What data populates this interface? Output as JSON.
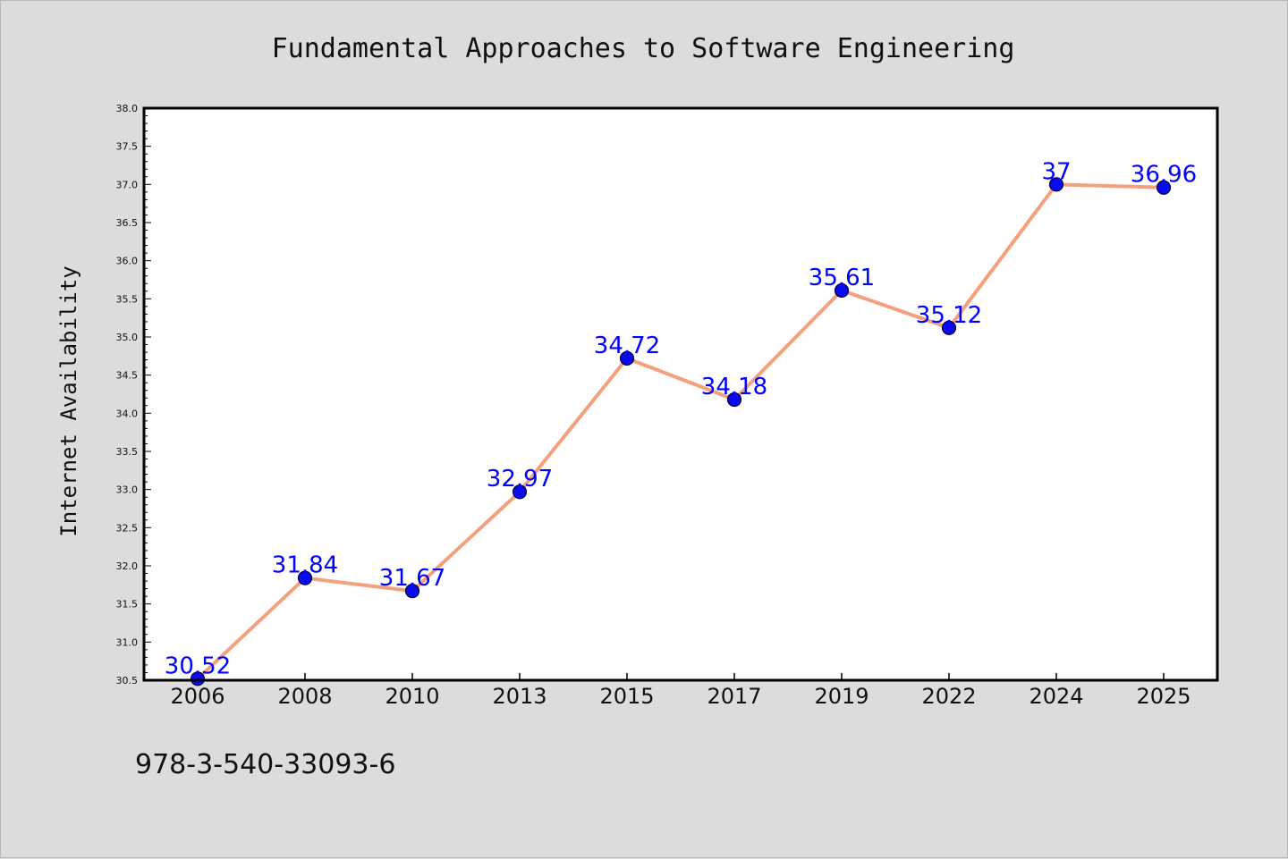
{
  "chart_data": {
    "type": "line",
    "title": "Fundamental Approaches to Software Engineering",
    "xlabel": "",
    "ylabel": "Internet Availability",
    "categories": [
      "2006",
      "2008",
      "2010",
      "2013",
      "2015",
      "2017",
      "2019",
      "2022",
      "2024",
      "2025"
    ],
    "series": [
      {
        "values": [
          30.52,
          31.84,
          31.67,
          32.97,
          34.72,
          34.18,
          35.61,
          35.12,
          37,
          36.96
        ]
      }
    ],
    "data_labels": [
      "30.52",
      "31.84",
      "31.67",
      "32.97",
      "34.72",
      "34.18",
      "35.61",
      "35.12",
      "37",
      "36.96"
    ],
    "ylim": [
      30.5,
      38.0
    ],
    "yticks": [
      "30.5",
      "31.0",
      "31.5",
      "32.0",
      "32.5",
      "33.0",
      "33.5",
      "34.0",
      "34.5",
      "35.0",
      "35.5",
      "36.0",
      "36.5",
      "37.0",
      "37.5",
      "38.0"
    ],
    "grid": false,
    "legend": "none",
    "colors": {
      "line": "#f4a07c",
      "marker_fill": "#0a0aee",
      "marker_edge": "#000033",
      "data_label": "#0000ff",
      "plot_background": "#ffffff",
      "figure_background": "#dcdcdc"
    }
  },
  "footer": {
    "isbn": "978-3-540-33093-6"
  }
}
